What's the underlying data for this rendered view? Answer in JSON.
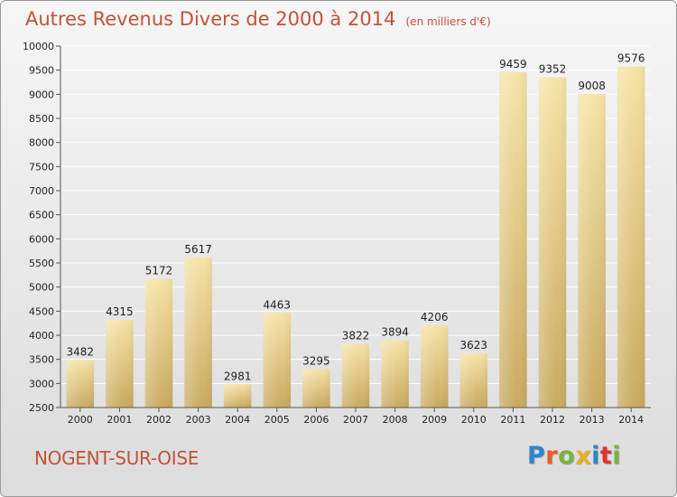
{
  "page": {
    "title": "Autres Revenus Divers de 2000 à 2014",
    "unit": "(en milliers d'€)",
    "commune": "NOGENT-SUR-OISE",
    "brand": "Proxiti",
    "brand_colors": [
      "#2f86c9",
      "#e85c1f",
      "#7bb33a",
      "#e8b21f",
      "#2f86c9",
      "#e0312e",
      "#7bb33a"
    ]
  },
  "chart_data": {
    "type": "bar",
    "title": "Autres Revenus Divers de 2000 à 2014",
    "categories": [
      "2000",
      "2001",
      "2002",
      "2003",
      "2004",
      "2005",
      "2006",
      "2007",
      "2008",
      "2009",
      "2010",
      "2011",
      "2012",
      "2013",
      "2014"
    ],
    "values": [
      3482,
      4315,
      5172,
      5617,
      2981,
      4463,
      3295,
      3822,
      3894,
      4206,
      3623,
      9459,
      9352,
      9008,
      9576
    ],
    "ylim": [
      2500,
      10000
    ],
    "yticks": [
      2500,
      3000,
      3500,
      4000,
      4500,
      5000,
      5500,
      6000,
      6500,
      7000,
      7500,
      8000,
      8500,
      9000,
      9500,
      10000
    ],
    "grid": true,
    "bar_color": "#e8cf86",
    "grid_color": "#ffffff",
    "text_color": "#222222"
  }
}
